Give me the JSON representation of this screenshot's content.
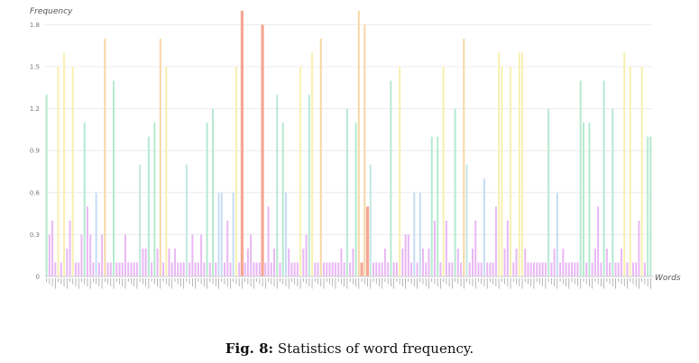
{
  "chart_data": {
    "type": "bar",
    "ylabel": "Frequency",
    "xlabel": "Words",
    "ylim": [
      0,
      1.88
    ],
    "y_ticks": [
      "0",
      "0.3",
      "0.6",
      "0.9",
      "1.2",
      "1.5",
      "1.8"
    ],
    "grid": "horizontal",
    "legend": "none",
    "palette": [
      "#b5ead1",
      "#f6d7a6",
      "#f8f0b0",
      "#e9b8f5",
      "#c6dcf5",
      "#f6a693",
      "#c3e7e2"
    ],
    "values": [
      1.3,
      0.3,
      0.4,
      0.1,
      1.5,
      0.1,
      1.6,
      0.2,
      0.4,
      1.5,
      0.1,
      0.1,
      0.3,
      1.1,
      0.5,
      0.3,
      0.1,
      0.6,
      0.1,
      0.3,
      1.7,
      0.1,
      0.1,
      1.4,
      0.1,
      0.1,
      0.1,
      0.3,
      0.1,
      0.1,
      0.1,
      0.1,
      0.8,
      0.2,
      0.2,
      1.0,
      0.1,
      1.1,
      0.2,
      1.7,
      0.1,
      1.5,
      0.2,
      0.1,
      0.2,
      0.1,
      0.1,
      0.1,
      0.8,
      0.1,
      0.3,
      0.1,
      0.1,
      0.3,
      0.1,
      1.1,
      0.1,
      1.2,
      0.1,
      0.6,
      0.6,
      0.1,
      0.4,
      0.1,
      0.6,
      1.5,
      0.1,
      1.9,
      0.1,
      0.2,
      0.3,
      0.1,
      0.1,
      0.1,
      1.8,
      0.1,
      0.5,
      0.1,
      0.2,
      1.3,
      0.1,
      1.1,
      0.6,
      0.2,
      0.1,
      0.1,
      0.1,
      1.5,
      0.2,
      0.3,
      1.3,
      1.6,
      0.1,
      0.1,
      1.7,
      0.1,
      0.1,
      0.1,
      0.1,
      0.1,
      0.1,
      0.2,
      0.1,
      1.2,
      0.1,
      0.2,
      1.1,
      1.9,
      0.1,
      1.8,
      0.5,
      0.8,
      0.1,
      0.1,
      0.1,
      0.1,
      0.2,
      0.1,
      1.4,
      0.1,
      0.1,
      1.5,
      0.2,
      0.3,
      0.3,
      0.1,
      0.6,
      0.1,
      0.6,
      0.2,
      0.1,
      0.2,
      1.0,
      0.4,
      1.0,
      0.1,
      1.5,
      0.4,
      0.1,
      0.1,
      1.2,
      0.2,
      0.1,
      1.7,
      0.8,
      0.1,
      0.2,
      0.4,
      0.1,
      0.1,
      0.7,
      0.1,
      0.1,
      0.1,
      0.5,
      1.6,
      1.5,
      0.2,
      0.4,
      1.5,
      0.1,
      0.2,
      1.6,
      1.6,
      0.2,
      0.1,
      0.1,
      0.1,
      0.1,
      0.1,
      0.1,
      0.1,
      1.2,
      0.1,
      0.2,
      0.6,
      0.1,
      0.2,
      0.1,
      0.1,
      0.1,
      0.1,
      0.1,
      1.4,
      1.1,
      0.1,
      1.1,
      0.1,
      0.2,
      0.5,
      0.1,
      1.4,
      0.2,
      0.1,
      1.2,
      0.1,
      0.1,
      0.2,
      1.6,
      0.1,
      1.5,
      0.1,
      0.1,
      0.4,
      1.5,
      0.1,
      1.0,
      1.0
    ],
    "highlight": [
      67,
      74,
      108,
      110
    ]
  },
  "caption": {
    "lead": "Fig. 8:",
    "text": " Statistics of word frequency."
  }
}
